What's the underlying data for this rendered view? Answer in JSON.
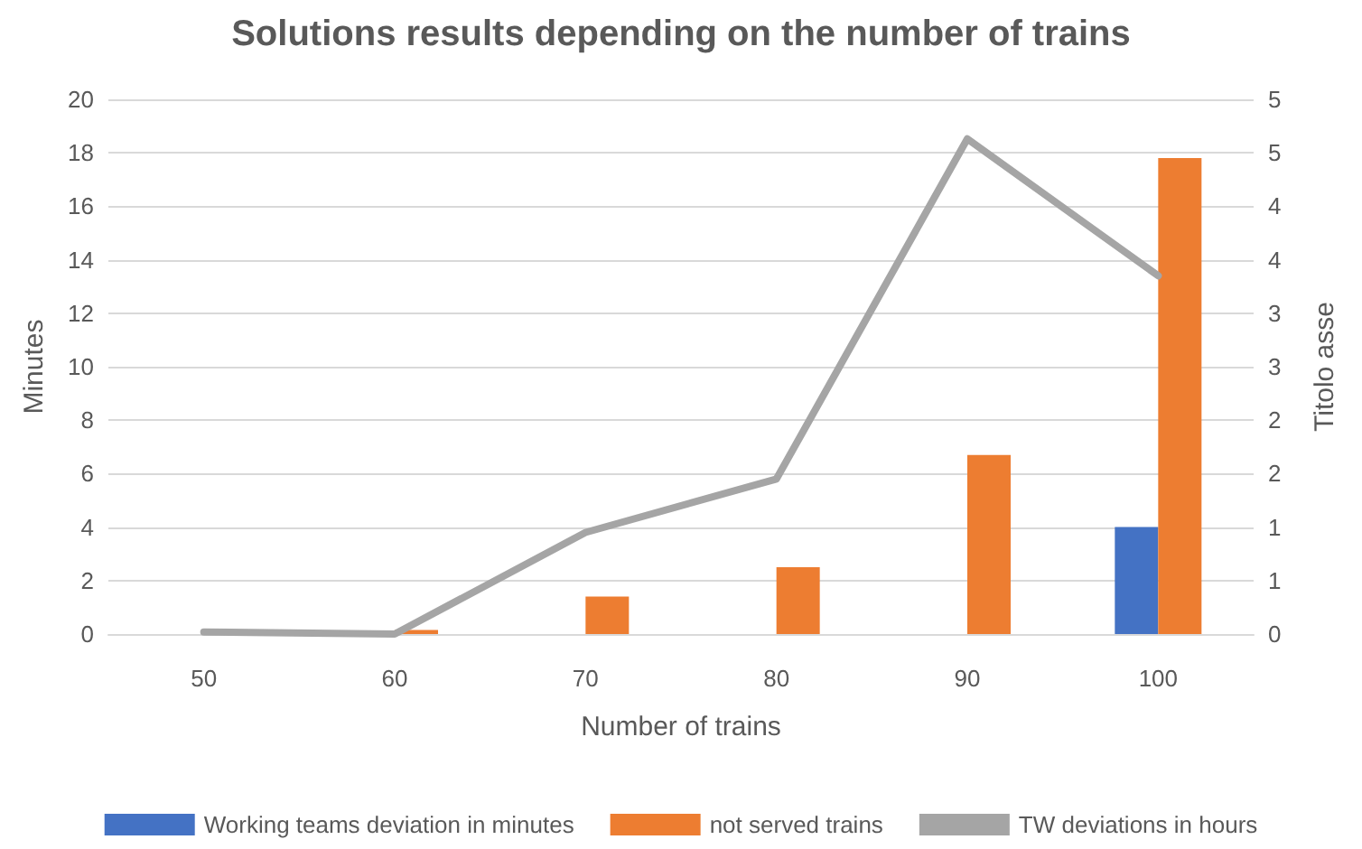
{
  "chart_data": {
    "type": "bar",
    "title": "Solutions results depending on the number of trains",
    "xlabel": "Number of trains",
    "ylabel": "Minutes",
    "y2label": "Titolo asse",
    "categories": [
      "50",
      "60",
      "70",
      "80",
      "90",
      "100"
    ],
    "series": [
      {
        "name": "Working teams deviation in minutes",
        "color": "#4472c4",
        "values": [
          0,
          0,
          0,
          0,
          0,
          4.0
        ]
      },
      {
        "name": "not served trains",
        "color": "#ed7d31",
        "values": [
          0,
          0.15,
          1.4,
          2.5,
          6.7,
          17.8
        ]
      },
      {
        "name": "TW deviations in hours",
        "type": "line",
        "axis": "y2",
        "color": "#a5a5a5",
        "values": [
          0.02,
          0,
          0.95,
          1.45,
          4.63,
          3.35
        ]
      }
    ],
    "ylim": [
      0,
      20
    ],
    "yticks": [
      0,
      2,
      4,
      6,
      8,
      10,
      12,
      14,
      16,
      18,
      20
    ],
    "y2lim": [
      0,
      5
    ],
    "y2ticks": [
      0,
      {
        "value": 0.5,
        "label": "1"
      },
      1,
      {
        "value": 1.5,
        "label": "2"
      },
      2,
      {
        "value": 2.5,
        "label": "3"
      },
      3,
      {
        "value": 3.5,
        "label": "4"
      },
      4,
      {
        "value": 4.5,
        "label": "5"
      },
      5
    ],
    "grid": "y",
    "legend": "bottom",
    "marker": "none",
    "line_style": "solid"
  }
}
